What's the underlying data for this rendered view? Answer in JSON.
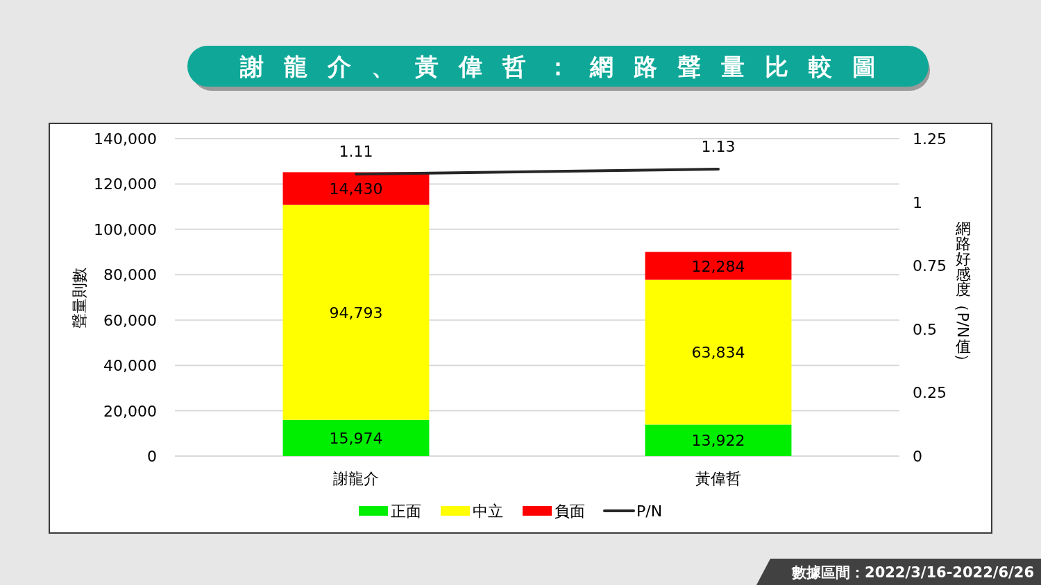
{
  "chart_data": {
    "type": "bar",
    "title": "謝龍介、黃偉哲：網路聲量比較圖",
    "categories": [
      "謝龍介",
      "黃偉哲"
    ],
    "series": [
      {
        "name": "正面",
        "color": "#00ee00",
        "values": [
          15974,
          13922
        ],
        "value_labels": [
          "15,974",
          "13,922"
        ]
      },
      {
        "name": "中立",
        "color": "#ffff00",
        "values": [
          94793,
          63834
        ],
        "value_labels": [
          "94,793",
          "63,834"
        ]
      },
      {
        "name": "負面",
        "color": "#ff0000",
        "values": [
          14430,
          12284
        ],
        "value_labels": [
          "14,430",
          "12,284"
        ]
      },
      {
        "name": "P/N",
        "type": "line",
        "axis": "y2",
        "color": "#262626",
        "values": [
          1.11,
          1.13
        ],
        "value_labels": [
          "1.11",
          "1.13"
        ]
      }
    ],
    "stacked": true,
    "ylabel": "聲量則數",
    "y2label": "網路好感度（P/N值）",
    "ylim": [
      0,
      140000
    ],
    "yticks": [
      {
        "value": 0,
        "label": "0"
      },
      {
        "value": 20000,
        "label": "20,000"
      },
      {
        "value": 40000,
        "label": "40,000"
      },
      {
        "value": 60000,
        "label": "60,000"
      },
      {
        "value": 80000,
        "label": "80,000"
      },
      {
        "value": 100000,
        "label": "100,000"
      },
      {
        "value": 120000,
        "label": "120,000"
      },
      {
        "value": 140000,
        "label": "140,000"
      }
    ],
    "y2lim": [
      0,
      1.25
    ],
    "y2ticks": [
      0,
      0.25,
      0.5,
      0.75,
      1,
      1.25
    ],
    "grid": "y",
    "legend": "bottom",
    "annotations": [
      "數據區間：2022/3/16-2022/6/26"
    ]
  }
}
